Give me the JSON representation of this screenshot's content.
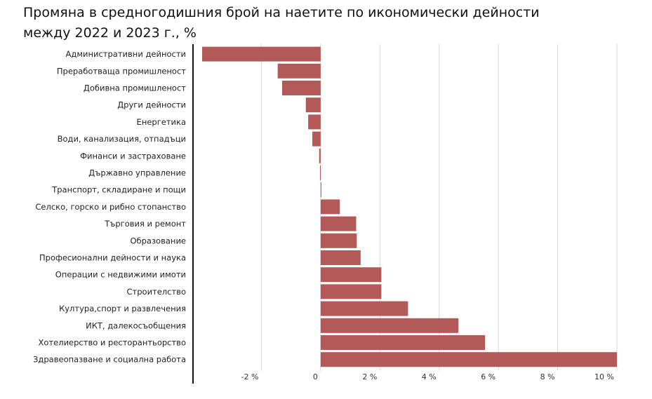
{
  "title_line1": "Промяна в средногодишния брой на наетите по икономически дейности",
  "title_line2": "между 2022 и 2023 г., %",
  "colors": {
    "bar": "#b35a58",
    "grid": "#d9d9d9",
    "axis": "#111111"
  },
  "chart_data": {
    "type": "bar",
    "orientation": "horizontal",
    "categories": [
      "Административни дейности",
      "Преработваща промишленост",
      "Добивна промишленост",
      "Други дейности",
      "Енергетика",
      "Води, канализация, отпадъци",
      "Финанси и застраховане",
      "Държавно управление",
      "Транспорт, складиране и пощи",
      "Селско, горско и рибно стопанство",
      "Търговия и ремонт",
      "Образование",
      "Професионални дейности и наука",
      "Операции с недвижими имоти",
      "Строителство",
      "Култура,спорт и развлечения",
      "ИКТ, далекосъобщения",
      "Хотелиерство и ресторантьорство",
      "Здравеопазване и социална работа"
    ],
    "values": [
      -4.0,
      -1.45,
      -1.3,
      -0.5,
      -0.42,
      -0.28,
      -0.05,
      -0.02,
      0.02,
      0.65,
      1.2,
      1.22,
      1.35,
      2.05,
      2.05,
      2.95,
      4.65,
      5.55,
      10.0
    ],
    "xlim": [
      -4.0,
      10.0
    ],
    "xticks": [
      -2,
      0,
      2,
      4,
      6,
      8,
      10
    ],
    "xtick_labels": [
      "-2 %",
      "0",
      "2 %",
      "4 %",
      "6 %",
      "8 %",
      "10 %"
    ],
    "xlabel": "",
    "ylabel": "",
    "grid": true
  }
}
